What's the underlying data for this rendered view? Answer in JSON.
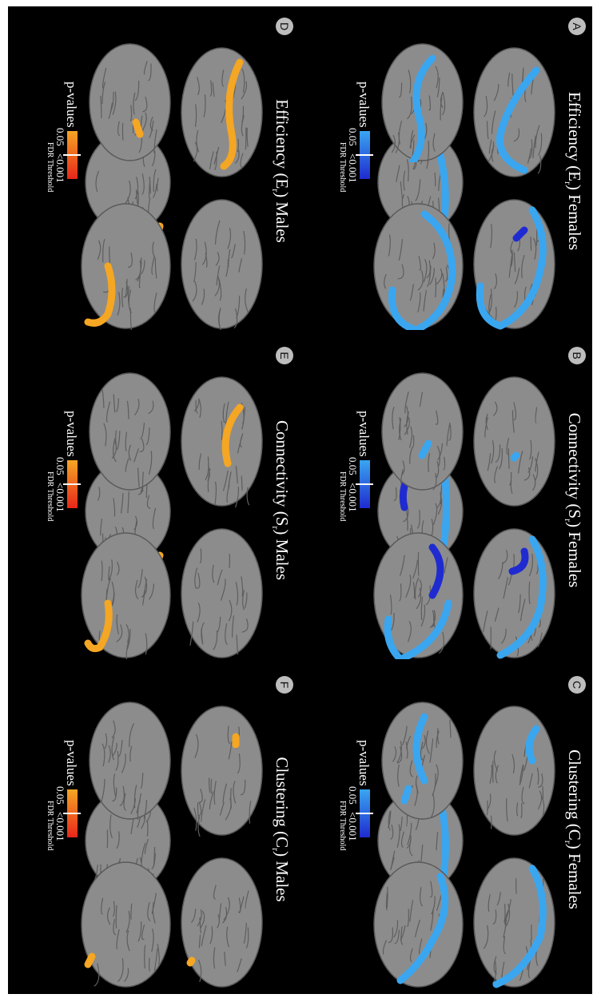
{
  "figure": {
    "panels": [
      {
        "label": "A",
        "title_prefix": "Efficiency (E",
        "title_sub": "r",
        "title_suffix": ") Females",
        "colormap": "blue",
        "legend": {
          "title": "p-values",
          "low": "0.05",
          "high": "<0.001",
          "threshold": "FDR Threshold"
        }
      },
      {
        "label": "B",
        "title_prefix": "Connectivity (S",
        "title_sub": "r",
        "title_suffix": ") Females",
        "colormap": "blue",
        "legend": {
          "title": "p-values",
          "low": "0.05",
          "high": "<0.001",
          "threshold": "FDR Threshold"
        }
      },
      {
        "label": "C",
        "title_prefix": "Clustering (C",
        "title_sub": "r",
        "title_suffix": ") Females",
        "colormap": "blue",
        "legend": {
          "title": "p-values",
          "low": "0.05",
          "high": "<0.001",
          "threshold": "FDR Threshold"
        }
      },
      {
        "label": "D",
        "title_prefix": "Efficiency (E",
        "title_sub": "r",
        "title_suffix": ") Males",
        "colormap": "orange",
        "legend": {
          "title": "p-values",
          "low": "0.05",
          "high": "<0.001",
          "threshold": "FDR Threshold"
        }
      },
      {
        "label": "E",
        "title_prefix": "Connectivity (S",
        "title_sub": "r",
        "title_suffix": ") Males",
        "colormap": "orange",
        "legend": {
          "title": "p-values",
          "low": "0.05",
          "high": "<0.001",
          "threshold": "FDR Threshold"
        }
      },
      {
        "label": "F",
        "title_prefix": "Clustering (C",
        "title_sub": "r",
        "title_suffix": ") Males",
        "colormap": "orange",
        "legend": {
          "title": "p-values",
          "low": "0.05",
          "high": "<0.001",
          "threshold": "FDR Threshold"
        }
      }
    ],
    "colors": {
      "background": "#000000",
      "cortex": "#8c8c8c",
      "blue_light": "#3aa6f0",
      "blue_dark": "#1f2bd0",
      "orange_light": "#f5a623",
      "orange_dark": "#e8261a"
    }
  }
}
